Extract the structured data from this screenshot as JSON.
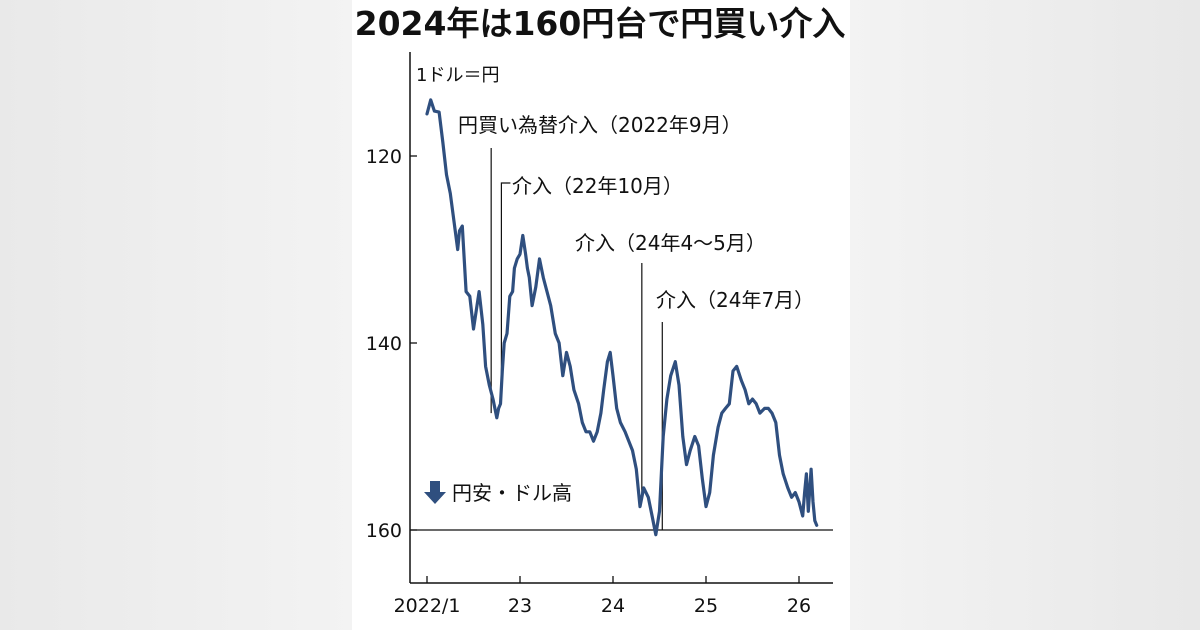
{
  "chart_data": {
    "type": "line",
    "title": "2024年は160円台で円買い介入",
    "unit_label": "1ドル＝円",
    "direction_note": "円安・ドル高",
    "y_inverted": true,
    "ylim": [
      110,
      166
    ],
    "yticks": [
      120,
      140,
      160
    ],
    "xlim": [
      2021.95,
      2026.35
    ],
    "xticks": [
      {
        "value": 2022.0,
        "label": "2022/1"
      },
      {
        "value": 2023.0,
        "label": "23"
      },
      {
        "value": 2024.0,
        "label": "24"
      },
      {
        "value": 2025.0,
        "label": "25"
      },
      {
        "value": 2026.0,
        "label": "26"
      }
    ],
    "reference_line": 160,
    "series": [
      {
        "color": "#2f4f7f",
        "points": [
          [
            2022.0,
            115.5
          ],
          [
            2022.04,
            114.0
          ],
          [
            2022.08,
            115.2
          ],
          [
            2022.13,
            115.3
          ],
          [
            2022.17,
            118.5
          ],
          [
            2022.21,
            122.0
          ],
          [
            2022.25,
            124.0
          ],
          [
            2022.29,
            127.0
          ],
          [
            2022.33,
            130.0
          ],
          [
            2022.35,
            128.0
          ],
          [
            2022.38,
            127.5
          ],
          [
            2022.42,
            134.5
          ],
          [
            2022.46,
            135.0
          ],
          [
            2022.5,
            138.5
          ],
          [
            2022.53,
            136.5
          ],
          [
            2022.56,
            134.5
          ],
          [
            2022.6,
            138.0
          ],
          [
            2022.63,
            142.5
          ],
          [
            2022.67,
            144.5
          ],
          [
            2022.71,
            146.0
          ],
          [
            2022.75,
            148.0
          ],
          [
            2022.77,
            147.0
          ],
          [
            2022.79,
            146.5
          ],
          [
            2022.81,
            143.0
          ],
          [
            2022.83,
            140.0
          ],
          [
            2022.86,
            139.0
          ],
          [
            2022.89,
            135.0
          ],
          [
            2022.92,
            134.5
          ],
          [
            2022.94,
            132.0
          ],
          [
            2022.97,
            131.0
          ],
          [
            2023.0,
            130.5
          ],
          [
            2023.03,
            128.5
          ],
          [
            2023.06,
            130.5
          ],
          [
            2023.08,
            132.0
          ],
          [
            2023.1,
            133.0
          ],
          [
            2023.13,
            136.0
          ],
          [
            2023.17,
            134.0
          ],
          [
            2023.21,
            131.0
          ],
          [
            2023.25,
            133.0
          ],
          [
            2023.29,
            134.5
          ],
          [
            2023.33,
            136.0
          ],
          [
            2023.38,
            139.0
          ],
          [
            2023.42,
            140.0
          ],
          [
            2023.46,
            143.5
          ],
          [
            2023.5,
            141.0
          ],
          [
            2023.54,
            142.5
          ],
          [
            2023.58,
            145.0
          ],
          [
            2023.63,
            146.5
          ],
          [
            2023.67,
            148.5
          ],
          [
            2023.71,
            149.5
          ],
          [
            2023.75,
            149.5
          ],
          [
            2023.79,
            150.5
          ],
          [
            2023.83,
            149.5
          ],
          [
            2023.87,
            147.5
          ],
          [
            2023.9,
            145.0
          ],
          [
            2023.94,
            142.0
          ],
          [
            2023.97,
            141.0
          ],
          [
            2024.0,
            143.5
          ],
          [
            2024.04,
            147.0
          ],
          [
            2024.08,
            148.5
          ],
          [
            2024.13,
            149.5
          ],
          [
            2024.17,
            150.5
          ],
          [
            2024.21,
            151.5
          ],
          [
            2024.25,
            153.5
          ],
          [
            2024.29,
            157.5
          ],
          [
            2024.33,
            155.5
          ],
          [
            2024.38,
            156.5
          ],
          [
            2024.42,
            158.5
          ],
          [
            2024.46,
            160.5
          ],
          [
            2024.5,
            158.0
          ],
          [
            2024.54,
            150.0
          ],
          [
            2024.58,
            146.0
          ],
          [
            2024.62,
            143.5
          ],
          [
            2024.67,
            142.0
          ],
          [
            2024.71,
            144.5
          ],
          [
            2024.75,
            150.0
          ],
          [
            2024.79,
            153.0
          ],
          [
            2024.83,
            151.5
          ],
          [
            2024.88,
            150.0
          ],
          [
            2024.92,
            151.0
          ],
          [
            2024.96,
            154.5
          ],
          [
            2025.0,
            157.5
          ],
          [
            2025.04,
            156.0
          ],
          [
            2025.08,
            152.0
          ],
          [
            2025.13,
            149.0
          ],
          [
            2025.17,
            147.5
          ],
          [
            2025.21,
            147.0
          ],
          [
            2025.25,
            146.5
          ],
          [
            2025.29,
            143.0
          ],
          [
            2025.33,
            142.5
          ],
          [
            2025.38,
            144.0
          ],
          [
            2025.42,
            145.0
          ],
          [
            2025.46,
            146.5
          ],
          [
            2025.5,
            146.0
          ],
          [
            2025.54,
            146.5
          ],
          [
            2025.58,
            147.5
          ],
          [
            2025.63,
            147.0
          ],
          [
            2025.67,
            147.0
          ],
          [
            2025.71,
            147.5
          ],
          [
            2025.75,
            148.5
          ],
          [
            2025.79,
            152.0
          ],
          [
            2025.83,
            154.0
          ],
          [
            2025.88,
            155.5
          ],
          [
            2025.92,
            156.5
          ],
          [
            2025.96,
            156.0
          ],
          [
            2026.0,
            157.0
          ],
          [
            2026.04,
            158.5
          ],
          [
            2026.06,
            156.0
          ],
          [
            2026.08,
            154.0
          ],
          [
            2026.1,
            158.0
          ],
          [
            2026.13,
            153.5
          ],
          [
            2026.15,
            157.0
          ],
          [
            2026.17,
            159.0
          ],
          [
            2026.19,
            159.5
          ]
        ]
      }
    ],
    "annotations": [
      {
        "x": 2022.69,
        "y_end": 147.5,
        "text": "円買い為替介入（2022年9月）"
      },
      {
        "x": 2022.8,
        "y_end": 146.5,
        "text": "介入（22年10月）"
      },
      {
        "x": 2024.31,
        "y_end": 157.0,
        "text": "介入（24年4〜5月）"
      },
      {
        "x": 2024.53,
        "y_end": 160.0,
        "text": "介入（24年7月）"
      }
    ]
  }
}
